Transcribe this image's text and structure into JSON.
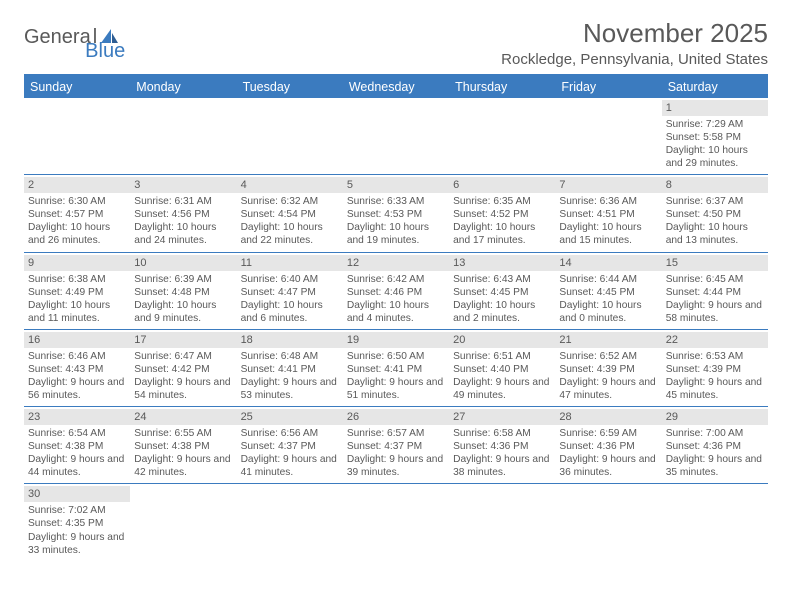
{
  "brand": {
    "general": "Genera",
    "l": "l",
    "blue": "Blue"
  },
  "header": {
    "month_title": "November 2025",
    "location": "Rockledge, Pennsylvania, United States"
  },
  "colors": {
    "accent": "#3b7bbf",
    "text": "#595959",
    "band": "#e6e6e6",
    "background": "#ffffff"
  },
  "weekdays": [
    "Sunday",
    "Monday",
    "Tuesday",
    "Wednesday",
    "Thursday",
    "Friday",
    "Saturday"
  ],
  "weeks": [
    [
      null,
      null,
      null,
      null,
      null,
      null,
      {
        "n": "1",
        "sunrise": "Sunrise: 7:29 AM",
        "sunset": "Sunset: 5:58 PM",
        "daylight": "Daylight: 10 hours and 29 minutes."
      }
    ],
    [
      {
        "n": "2",
        "sunrise": "Sunrise: 6:30 AM",
        "sunset": "Sunset: 4:57 PM",
        "daylight": "Daylight: 10 hours and 26 minutes."
      },
      {
        "n": "3",
        "sunrise": "Sunrise: 6:31 AM",
        "sunset": "Sunset: 4:56 PM",
        "daylight": "Daylight: 10 hours and 24 minutes."
      },
      {
        "n": "4",
        "sunrise": "Sunrise: 6:32 AM",
        "sunset": "Sunset: 4:54 PM",
        "daylight": "Daylight: 10 hours and 22 minutes."
      },
      {
        "n": "5",
        "sunrise": "Sunrise: 6:33 AM",
        "sunset": "Sunset: 4:53 PM",
        "daylight": "Daylight: 10 hours and 19 minutes."
      },
      {
        "n": "6",
        "sunrise": "Sunrise: 6:35 AM",
        "sunset": "Sunset: 4:52 PM",
        "daylight": "Daylight: 10 hours and 17 minutes."
      },
      {
        "n": "7",
        "sunrise": "Sunrise: 6:36 AM",
        "sunset": "Sunset: 4:51 PM",
        "daylight": "Daylight: 10 hours and 15 minutes."
      },
      {
        "n": "8",
        "sunrise": "Sunrise: 6:37 AM",
        "sunset": "Sunset: 4:50 PM",
        "daylight": "Daylight: 10 hours and 13 minutes."
      }
    ],
    [
      {
        "n": "9",
        "sunrise": "Sunrise: 6:38 AM",
        "sunset": "Sunset: 4:49 PM",
        "daylight": "Daylight: 10 hours and 11 minutes."
      },
      {
        "n": "10",
        "sunrise": "Sunrise: 6:39 AM",
        "sunset": "Sunset: 4:48 PM",
        "daylight": "Daylight: 10 hours and 9 minutes."
      },
      {
        "n": "11",
        "sunrise": "Sunrise: 6:40 AM",
        "sunset": "Sunset: 4:47 PM",
        "daylight": "Daylight: 10 hours and 6 minutes."
      },
      {
        "n": "12",
        "sunrise": "Sunrise: 6:42 AM",
        "sunset": "Sunset: 4:46 PM",
        "daylight": "Daylight: 10 hours and 4 minutes."
      },
      {
        "n": "13",
        "sunrise": "Sunrise: 6:43 AM",
        "sunset": "Sunset: 4:45 PM",
        "daylight": "Daylight: 10 hours and 2 minutes."
      },
      {
        "n": "14",
        "sunrise": "Sunrise: 6:44 AM",
        "sunset": "Sunset: 4:45 PM",
        "daylight": "Daylight: 10 hours and 0 minutes."
      },
      {
        "n": "15",
        "sunrise": "Sunrise: 6:45 AM",
        "sunset": "Sunset: 4:44 PM",
        "daylight": "Daylight: 9 hours and 58 minutes."
      }
    ],
    [
      {
        "n": "16",
        "sunrise": "Sunrise: 6:46 AM",
        "sunset": "Sunset: 4:43 PM",
        "daylight": "Daylight: 9 hours and 56 minutes."
      },
      {
        "n": "17",
        "sunrise": "Sunrise: 6:47 AM",
        "sunset": "Sunset: 4:42 PM",
        "daylight": "Daylight: 9 hours and 54 minutes."
      },
      {
        "n": "18",
        "sunrise": "Sunrise: 6:48 AM",
        "sunset": "Sunset: 4:41 PM",
        "daylight": "Daylight: 9 hours and 53 minutes."
      },
      {
        "n": "19",
        "sunrise": "Sunrise: 6:50 AM",
        "sunset": "Sunset: 4:41 PM",
        "daylight": "Daylight: 9 hours and 51 minutes."
      },
      {
        "n": "20",
        "sunrise": "Sunrise: 6:51 AM",
        "sunset": "Sunset: 4:40 PM",
        "daylight": "Daylight: 9 hours and 49 minutes."
      },
      {
        "n": "21",
        "sunrise": "Sunrise: 6:52 AM",
        "sunset": "Sunset: 4:39 PM",
        "daylight": "Daylight: 9 hours and 47 minutes."
      },
      {
        "n": "22",
        "sunrise": "Sunrise: 6:53 AM",
        "sunset": "Sunset: 4:39 PM",
        "daylight": "Daylight: 9 hours and 45 minutes."
      }
    ],
    [
      {
        "n": "23",
        "sunrise": "Sunrise: 6:54 AM",
        "sunset": "Sunset: 4:38 PM",
        "daylight": "Daylight: 9 hours and 44 minutes."
      },
      {
        "n": "24",
        "sunrise": "Sunrise: 6:55 AM",
        "sunset": "Sunset: 4:38 PM",
        "daylight": "Daylight: 9 hours and 42 minutes."
      },
      {
        "n": "25",
        "sunrise": "Sunrise: 6:56 AM",
        "sunset": "Sunset: 4:37 PM",
        "daylight": "Daylight: 9 hours and 41 minutes."
      },
      {
        "n": "26",
        "sunrise": "Sunrise: 6:57 AM",
        "sunset": "Sunset: 4:37 PM",
        "daylight": "Daylight: 9 hours and 39 minutes."
      },
      {
        "n": "27",
        "sunrise": "Sunrise: 6:58 AM",
        "sunset": "Sunset: 4:36 PM",
        "daylight": "Daylight: 9 hours and 38 minutes."
      },
      {
        "n": "28",
        "sunrise": "Sunrise: 6:59 AM",
        "sunset": "Sunset: 4:36 PM",
        "daylight": "Daylight: 9 hours and 36 minutes."
      },
      {
        "n": "29",
        "sunrise": "Sunrise: 7:00 AM",
        "sunset": "Sunset: 4:36 PM",
        "daylight": "Daylight: 9 hours and 35 minutes."
      }
    ],
    [
      {
        "n": "30",
        "sunrise": "Sunrise: 7:02 AM",
        "sunset": "Sunset: 4:35 PM",
        "daylight": "Daylight: 9 hours and 33 minutes."
      },
      null,
      null,
      null,
      null,
      null,
      null
    ]
  ]
}
